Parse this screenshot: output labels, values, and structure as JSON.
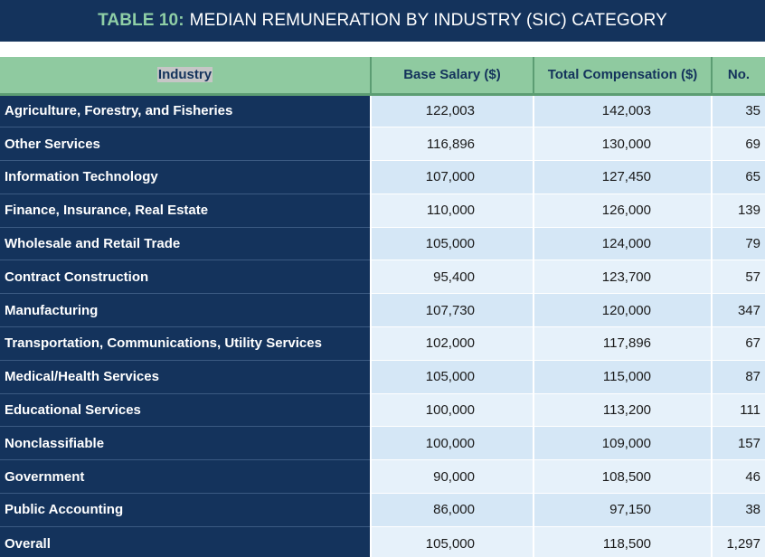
{
  "title": {
    "prefix": "TABLE 10:",
    "main": "MEDIAN REMUNERATION BY INDUSTRY (SIC) CATEGORY"
  },
  "colors": {
    "title_bg": "#14335c",
    "header_bg": "#8fcaa0",
    "row_label_bg": "#14335c",
    "cell_bg": "#d5e7f6",
    "cell_bg_alt": "#e6f1fa"
  },
  "chart_data": {
    "type": "table",
    "title": "TABLE 10: MEDIAN REMUNERATION BY INDUSTRY (SIC) CATEGORY",
    "columns": [
      "Industry",
      "Base Salary ($)",
      "Total Compensation ($)",
      "No."
    ],
    "rows": [
      {
        "industry": "Agriculture, Forestry, and Fisheries",
        "base": "122,003",
        "total": "142,003",
        "count": "35"
      },
      {
        "industry": "Other Services",
        "base": "116,896",
        "total": "130,000",
        "count": "69"
      },
      {
        "industry": "Information Technology",
        "base": "107,000",
        "total": "127,450",
        "count": "65"
      },
      {
        "industry": "Finance, Insurance, Real Estate",
        "base": "110,000",
        "total": "126,000",
        "count": "139"
      },
      {
        "industry": "Wholesale and Retail Trade",
        "base": "105,000",
        "total": "124,000",
        "count": "79"
      },
      {
        "industry": "Contract Construction",
        "base": "95,400",
        "total": "123,700",
        "count": "57"
      },
      {
        "industry": "Manufacturing",
        "base": "107,730",
        "total": "120,000",
        "count": "347"
      },
      {
        "industry": "Transportation, Communications, Utility Services",
        "base": "102,000",
        "total": "117,896",
        "count": "67"
      },
      {
        "industry": "Medical/Health Services",
        "base": "105,000",
        "total": "115,000",
        "count": "87"
      },
      {
        "industry": "Educational Services",
        "base": "100,000",
        "total": "113,200",
        "count": "111"
      },
      {
        "industry": "Nonclassifiable",
        "base": "100,000",
        "total": "109,000",
        "count": "157"
      },
      {
        "industry": "Government",
        "base": "90,000",
        "total": "108,500",
        "count": "46"
      },
      {
        "industry": "Public Accounting",
        "base": "86,000",
        "total": "97,150",
        "count": "38"
      },
      {
        "industry": "Overall",
        "base": "105,000",
        "total": "118,500",
        "count": "1,297"
      }
    ]
  }
}
